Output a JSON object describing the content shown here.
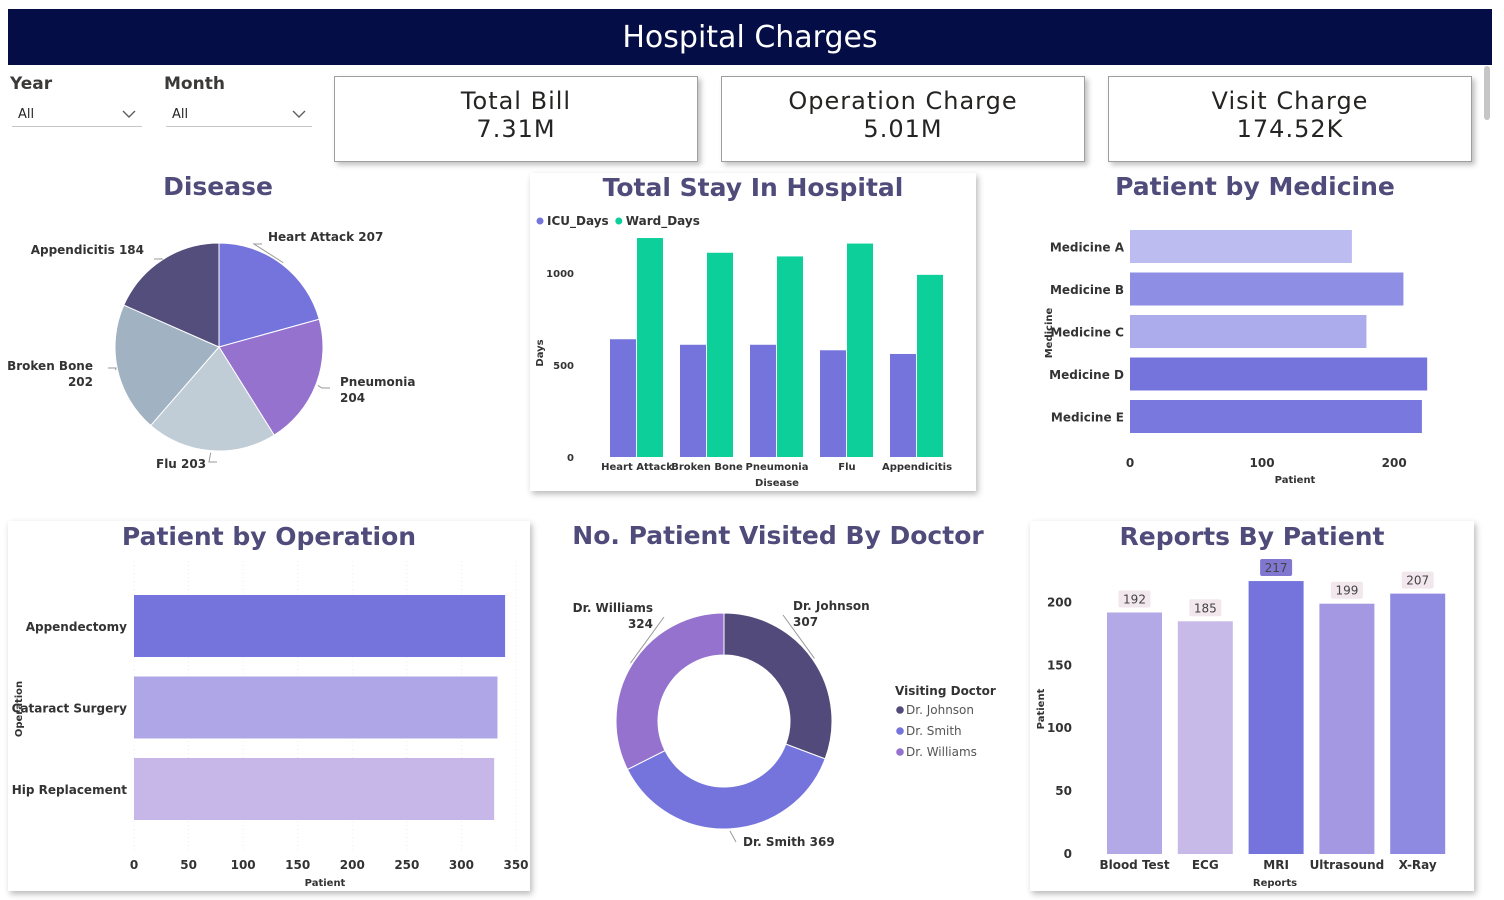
{
  "header": {
    "title": "Hospital Charges"
  },
  "slicers": [
    {
      "label": "Year",
      "value": "All"
    },
    {
      "label": "Month",
      "value": "All"
    }
  ],
  "cards": [
    {
      "label": "Total Bill",
      "value": "7.31M"
    },
    {
      "label": "Operation Charge",
      "value": "5.01M"
    },
    {
      "label": "Visit Charge",
      "value": "174.52K"
    }
  ],
  "chart_data": [
    {
      "id": "disease",
      "type": "pie",
      "title": "Disease",
      "slices": [
        {
          "label": "Heart Attack",
          "value": 207,
          "color": "#7474dc"
        },
        {
          "label": "Pneumonia",
          "value": 204,
          "color": "#9472cd"
        },
        {
          "label": "Flu",
          "value": 203,
          "color": "#c0ccd6"
        },
        {
          "label": "Broken Bone",
          "value": 202,
          "color": "#a1b2c2"
        },
        {
          "label": "Appendicitis",
          "value": 184,
          "color": "#544e7c"
        }
      ]
    },
    {
      "id": "stay",
      "type": "bar",
      "title": "Total Stay In Hospital",
      "xlabel": "Disease",
      "ylabel": "Days",
      "categories": [
        "Heart Attack",
        "Broken Bone",
        "Pneumonia",
        "Flu",
        "Appendicitis"
      ],
      "series": [
        {
          "name": "ICU_Days",
          "color": "#7474dc",
          "values": [
            640,
            610,
            610,
            580,
            560
          ]
        },
        {
          "name": "Ward_Days",
          "color": "#0ccf9a",
          "values": [
            1190,
            1110,
            1090,
            1160,
            990
          ]
        }
      ],
      "yticks": [
        "0",
        "500",
        "1000"
      ],
      "ylim": [
        0,
        1250
      ]
    },
    {
      "id": "medicine",
      "type": "bar",
      "orientation": "horizontal",
      "title": "Patient by Medicine",
      "xlabel": "Patient",
      "ylabel": "Medicine",
      "categories": [
        "Medicine A",
        "Medicine B",
        "Medicine C",
        "Medicine D",
        "Medicine E"
      ],
      "values": [
        168,
        207,
        179,
        225,
        221
      ],
      "colors": [
        "#bcbcf0",
        "#8e8ee4",
        "#acacec",
        "#7474dc",
        "#7878de"
      ],
      "xticks": [
        "0",
        "100",
        "200"
      ],
      "xlim": [
        0,
        240
      ]
    },
    {
      "id": "operation",
      "type": "bar",
      "orientation": "horizontal",
      "title": "Patient by Operation",
      "xlabel": "Patient",
      "ylabel": "Operation",
      "categories": [
        "Appendectomy",
        "Cataract Surgery",
        "Hip Replacement"
      ],
      "values": [
        340,
        333,
        330
      ],
      "colors": [
        "#7474dc",
        "#aea6e6",
        "#c6b7e8"
      ],
      "xticks": [
        "0",
        "50",
        "100",
        "150",
        "200",
        "250",
        "300",
        "350"
      ],
      "xlim": [
        0,
        350
      ]
    },
    {
      "id": "doctor",
      "type": "pie",
      "donut": true,
      "title": "No. Patient Visited By Doctor",
      "legend_title": "Visiting Doctor",
      "slices": [
        {
          "label": "Dr. Johnson",
          "value": 307,
          "color": "#524a7b"
        },
        {
          "label": "Dr. Smith",
          "value": 369,
          "color": "#7474dc"
        },
        {
          "label": "Dr. Williams",
          "value": 324,
          "color": "#9472cd"
        }
      ]
    },
    {
      "id": "reports",
      "type": "bar",
      "title": "Reports By Patient",
      "xlabel": "Reports",
      "ylabel": "Patient",
      "categories": [
        "Blood Test",
        "ECG",
        "MRI",
        "Ultrasound",
        "X-Ray"
      ],
      "values": [
        192,
        185,
        217,
        199,
        207
      ],
      "colors": [
        "#b2a9e6",
        "#c7b9e8",
        "#7474dc",
        "#a498e2",
        "#8e8ae2"
      ],
      "yticks": [
        "0",
        "50",
        "100",
        "150",
        "200"
      ],
      "ylim": [
        0,
        225
      ]
    }
  ]
}
